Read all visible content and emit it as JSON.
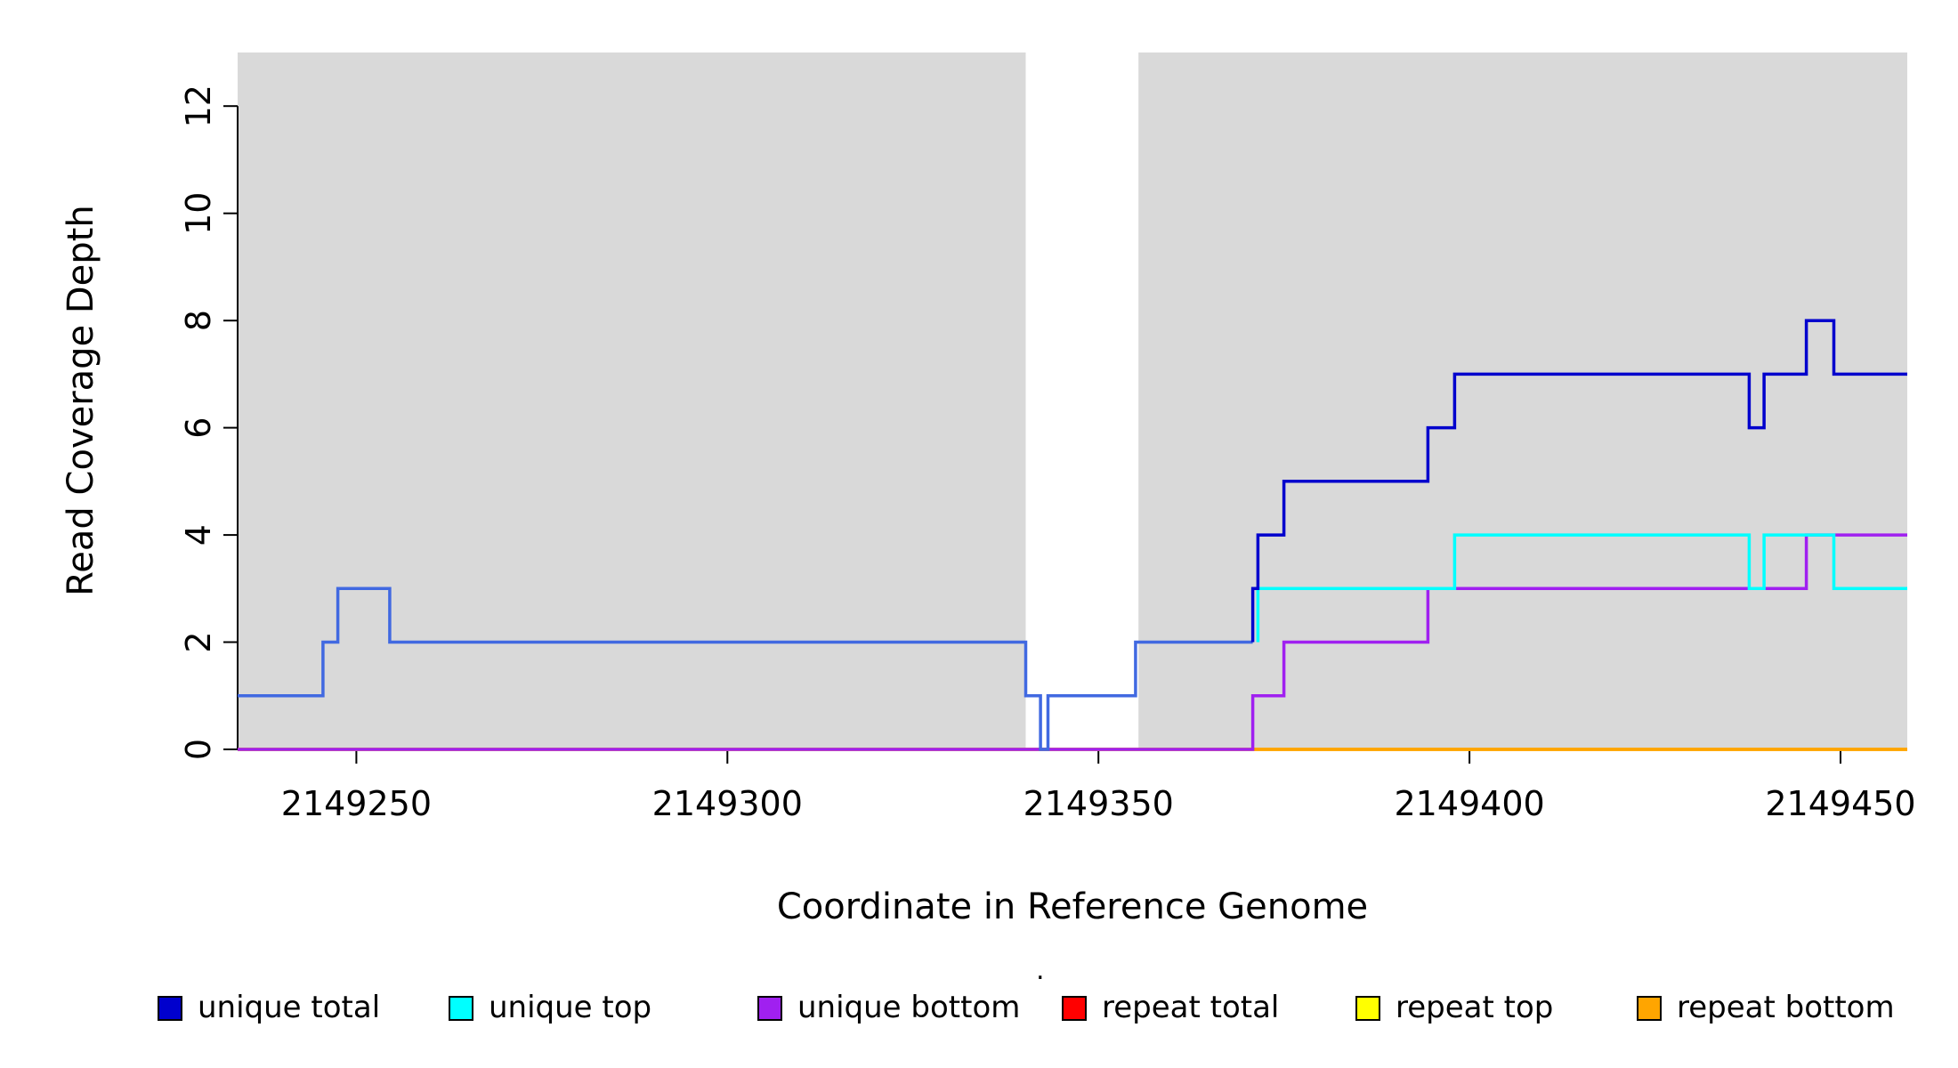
{
  "chart_data": {
    "type": "line",
    "title": "",
    "xlabel": "Coordinate in Reference Genome",
    "ylabel": "Read Coverage Depth",
    "xlim": [
      2149234,
      2149459
    ],
    "ylim": [
      0,
      13
    ],
    "xticks": [
      2149250,
      2149300,
      2149350,
      2149400,
      2149450
    ],
    "yticks": [
      0,
      2,
      4,
      6,
      8,
      10,
      12
    ],
    "grid": false,
    "legend_position": "bottom",
    "panel": {
      "shaded_color": "#D9D9D9",
      "shaded_regions": [
        [
          2149234,
          2149340.2
        ],
        [
          2149355.4,
          2149459
        ]
      ],
      "gap_region": [
        2149340.2,
        2149355.4
      ]
    },
    "series": [
      {
        "name": "repeat total",
        "color": "#FF0000",
        "points": [
          [
            2149234,
            0
          ]
        ],
        "x_end": 2149459
      },
      {
        "name": "repeat top",
        "color": "#FFFF00",
        "points": [
          [
            2149234,
            0
          ]
        ],
        "x_end": 2149459
      },
      {
        "name": "repeat bottom",
        "color": "#FFA500",
        "points": [
          [
            2149234,
            0
          ]
        ],
        "x_end": 2149459
      },
      {
        "name": "unique bottom",
        "color": "#A020F0",
        "points": [
          [
            2149234,
            0
          ],
          [
            2149370.8,
            1
          ],
          [
            2149375,
            2
          ],
          [
            2149394.4,
            3
          ],
          [
            2149445.4,
            4
          ]
        ],
        "x_end": 2149459
      },
      {
        "name": "unique top",
        "color": "#00FFFF",
        "points": [
          [
            2149371.5,
            2
          ],
          [
            2149371.5,
            3
          ],
          [
            2149398,
            4
          ],
          [
            2149437.7,
            3
          ],
          [
            2149439.7,
            4
          ],
          [
            2149449.1,
            3
          ]
        ],
        "x_end": 2149459
      },
      {
        "name": "unique total",
        "color": "#0000CD",
        "segments": [
          {
            "color": "#4169E1",
            "points": [
              [
                2149234,
                1
              ],
              [
                2149245.5,
                2
              ],
              [
                2149247.5,
                3
              ],
              [
                2149254.5,
                2
              ],
              [
                2149340.2,
                1
              ],
              [
                2149342.2,
                0
              ],
              [
                2149343.2,
                1
              ],
              [
                2149355,
                2
              ]
            ],
            "x_end": 2149370.8
          },
          {
            "color": "#0000CD",
            "points": [
              [
                2149370.8,
                2
              ],
              [
                2149370.8,
                3
              ],
              [
                2149371.5,
                4
              ],
              [
                2149375,
                5
              ],
              [
                2149394.4,
                6
              ],
              [
                2149398,
                7
              ],
              [
                2149437.7,
                6
              ],
              [
                2149439.7,
                7
              ],
              [
                2149445.4,
                8
              ],
              [
                2149449.1,
                7
              ]
            ],
            "x_end": 2149459
          }
        ]
      }
    ],
    "legend": [
      {
        "label": "unique total",
        "color": "#0000CD"
      },
      {
        "label": "unique top",
        "color": "#00FFFF"
      },
      {
        "label": "unique bottom",
        "color": "#A020F0"
      },
      {
        "label": "repeat total",
        "color": "#FF0000"
      },
      {
        "label": "repeat top",
        "color": "#FFFF00"
      },
      {
        "label": "repeat bottom",
        "color": "#FFA500"
      }
    ],
    "stray_mark": "."
  }
}
